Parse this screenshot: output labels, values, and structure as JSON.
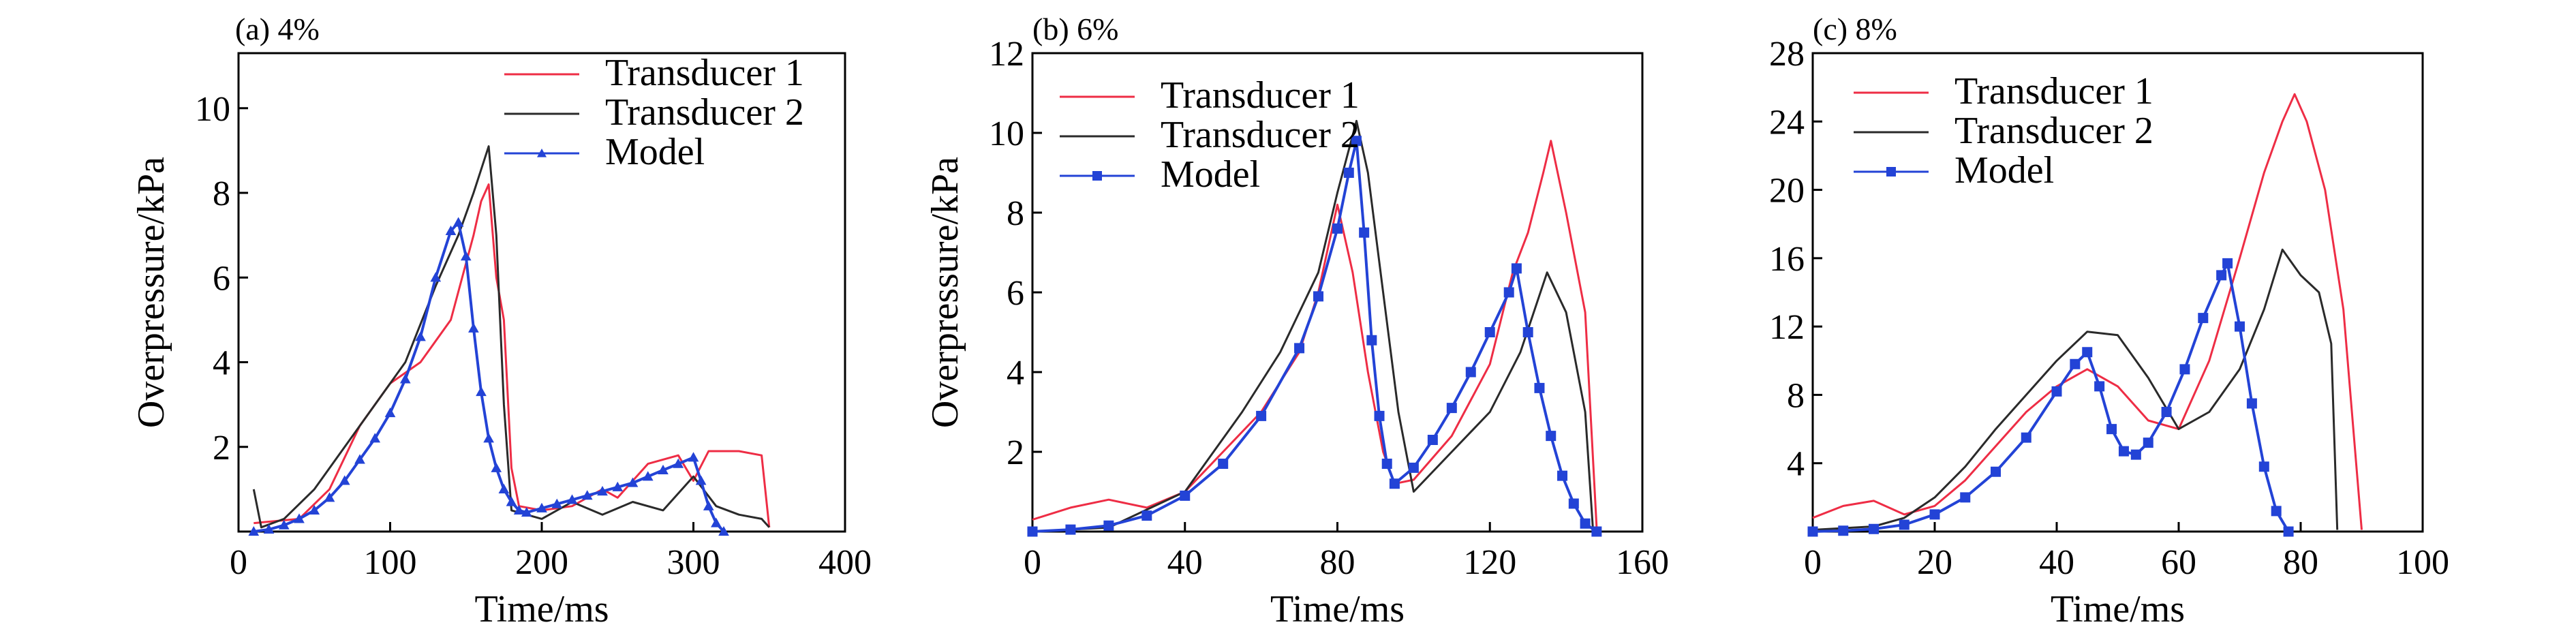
{
  "colors": {
    "transducer1": "#ee2d45",
    "transducer2": "#2a2a2a",
    "model": "#2343d6",
    "axis": "#000000"
  },
  "chart_data": [
    {
      "type": "line",
      "panel_label": "(a) 4%",
      "xlabel": "Time/ms",
      "ylabel": "Overpressure/kPa",
      "xlim": [
        0,
        400
      ],
      "ylim": [
        0,
        11.3
      ],
      "xticks": [
        0,
        100,
        200,
        300,
        400
      ],
      "yticks": [
        2,
        4,
        6,
        8,
        10
      ],
      "legend": "top-right",
      "series": [
        {
          "name": "Transducer 1",
          "color_key": "transducer1",
          "marker": "none",
          "x": [
            10,
            40,
            60,
            80,
            100,
            120,
            140,
            155,
            160,
            165,
            170,
            175,
            180,
            185,
            200,
            220,
            240,
            250,
            270,
            290,
            300,
            310,
            330,
            345,
            350
          ],
          "y": [
            0.2,
            0.3,
            1.0,
            2.5,
            3.5,
            4.0,
            5.0,
            7.0,
            7.8,
            8.2,
            6.0,
            5.0,
            1.5,
            0.6,
            0.5,
            0.6,
            1.0,
            0.8,
            1.6,
            1.8,
            1.2,
            1.9,
            1.9,
            1.8,
            0.1
          ]
        },
        {
          "name": "Transducer 2",
          "color_key": "transducer2",
          "marker": "none",
          "x": [
            10,
            15,
            30,
            50,
            70,
            90,
            110,
            130,
            145,
            155,
            165,
            170,
            175,
            180,
            200,
            220,
            240,
            260,
            280,
            300,
            315,
            330,
            345,
            350
          ],
          "y": [
            1.0,
            0.1,
            0.3,
            1.0,
            2.0,
            3.0,
            4.0,
            5.8,
            7.0,
            8.0,
            9.1,
            7.0,
            3.0,
            0.5,
            0.3,
            0.7,
            0.4,
            0.7,
            0.5,
            1.3,
            0.6,
            0.4,
            0.3,
            0.1
          ]
        },
        {
          "name": "Model",
          "color_key": "model",
          "marker": "triangle",
          "x": [
            10,
            20,
            30,
            40,
            50,
            60,
            70,
            80,
            90,
            100,
            110,
            120,
            130,
            140,
            145,
            150,
            155,
            160,
            165,
            170,
            175,
            180,
            185,
            190,
            200,
            210,
            220,
            230,
            240,
            250,
            260,
            270,
            280,
            290,
            300,
            305,
            310,
            315,
            320
          ],
          "y": [
            0.0,
            0.05,
            0.15,
            0.3,
            0.5,
            0.8,
            1.2,
            1.7,
            2.2,
            2.8,
            3.6,
            4.6,
            6.0,
            7.1,
            7.3,
            6.5,
            4.8,
            3.3,
            2.2,
            1.5,
            1.0,
            0.7,
            0.5,
            0.45,
            0.55,
            0.65,
            0.75,
            0.85,
            0.95,
            1.05,
            1.15,
            1.3,
            1.45,
            1.6,
            1.75,
            1.2,
            0.6,
            0.2,
            0.0
          ]
        }
      ]
    },
    {
      "type": "line",
      "panel_label": "(b) 6%",
      "xlabel": "Time/ms",
      "ylabel": "Overpressure/kPa",
      "xlim": [
        0,
        160
      ],
      "ylim": [
        0,
        12
      ],
      "xticks": [
        0,
        40,
        80,
        120,
        160
      ],
      "yticks": [
        2,
        4,
        6,
        8,
        10,
        12
      ],
      "legend": "top-right",
      "series": [
        {
          "name": "Transducer 1",
          "color_key": "transducer1",
          "marker": "none",
          "x": [
            0,
            10,
            20,
            30,
            40,
            50,
            60,
            70,
            75,
            80,
            84,
            88,
            92,
            95,
            100,
            110,
            120,
            126,
            130,
            134,
            136,
            140,
            145,
            148
          ],
          "y": [
            0.3,
            0.6,
            0.8,
            0.6,
            1.0,
            2.0,
            3.0,
            4.5,
            6.0,
            8.2,
            6.5,
            4.0,
            2.0,
            1.2,
            1.3,
            2.4,
            4.2,
            6.5,
            7.5,
            9.0,
            9.8,
            8.0,
            5.5,
            0.1
          ]
        },
        {
          "name": "Transducer 2",
          "color_key": "transducer2",
          "marker": "none",
          "x": [
            0,
            20,
            40,
            55,
            65,
            75,
            80,
            85,
            88,
            92,
            96,
            100,
            110,
            120,
            128,
            135,
            140,
            145,
            147
          ],
          "y": [
            0.0,
            0.1,
            1.0,
            3.0,
            4.5,
            6.5,
            8.5,
            10.3,
            9.0,
            6.0,
            3.0,
            1.0,
            2.0,
            3.0,
            4.5,
            6.5,
            5.5,
            3.0,
            0.1
          ]
        },
        {
          "name": "Model",
          "color_key": "model",
          "marker": "square",
          "x": [
            0,
            10,
            20,
            30,
            40,
            50,
            60,
            70,
            75,
            80,
            83,
            85,
            87,
            89,
            91,
            93,
            95,
            100,
            105,
            110,
            115,
            120,
            125,
            127,
            130,
            133,
            136,
            139,
            142,
            145,
            148
          ],
          "y": [
            0.0,
            0.05,
            0.15,
            0.4,
            0.9,
            1.7,
            2.9,
            4.6,
            5.9,
            7.6,
            9.0,
            9.8,
            7.5,
            4.8,
            2.9,
            1.7,
            1.2,
            1.6,
            2.3,
            3.1,
            4.0,
            5.0,
            6.0,
            6.6,
            5.0,
            3.6,
            2.4,
            1.4,
            0.7,
            0.2,
            0.0
          ]
        }
      ]
    },
    {
      "type": "line",
      "panel_label": "(c) 8%",
      "xlabel": "Time/ms",
      "ylabel": "",
      "xlim": [
        0,
        100
      ],
      "ylim": [
        0,
        28
      ],
      "xticks": [
        0,
        20,
        40,
        60,
        80,
        100
      ],
      "yticks": [
        4,
        8,
        12,
        16,
        20,
        24,
        28
      ],
      "legend": "top-left",
      "series": [
        {
          "name": "Transducer 1",
          "color_key": "transducer1",
          "marker": "none",
          "x": [
            0,
            5,
            10,
            15,
            20,
            25,
            30,
            35,
            40,
            45,
            50,
            55,
            60,
            65,
            70,
            74,
            77,
            79,
            81,
            84,
            87,
            90
          ],
          "y": [
            0.8,
            1.5,
            1.8,
            1.0,
            1.5,
            3.0,
            5.0,
            7.0,
            8.5,
            9.5,
            8.5,
            6.5,
            6.0,
            10.0,
            16.0,
            21.0,
            24.0,
            25.6,
            24.0,
            20.0,
            13.0,
            0.1
          ]
        },
        {
          "name": "Transducer 2",
          "color_key": "transducer2",
          "marker": "none",
          "x": [
            0,
            10,
            15,
            20,
            25,
            30,
            35,
            40,
            45,
            50,
            55,
            60,
            65,
            70,
            74,
            77,
            80,
            83,
            85,
            86
          ],
          "y": [
            0.1,
            0.3,
            0.8,
            2.0,
            3.8,
            6.0,
            8.0,
            10.0,
            11.7,
            11.5,
            9.0,
            6.0,
            7.0,
            9.5,
            13.0,
            16.5,
            15.0,
            14.0,
            11.0,
            0.1
          ]
        },
        {
          "name": "Model",
          "color_key": "model",
          "marker": "square",
          "x": [
            0,
            5,
            10,
            15,
            20,
            25,
            30,
            35,
            40,
            43,
            45,
            47,
            49,
            51,
            53,
            55,
            58,
            61,
            64,
            67,
            68,
            70,
            72,
            74,
            76,
            78
          ],
          "y": [
            0.0,
            0.05,
            0.15,
            0.4,
            1.0,
            2.0,
            3.5,
            5.5,
            8.2,
            9.8,
            10.5,
            8.5,
            6.0,
            4.7,
            4.5,
            5.2,
            7.0,
            9.5,
            12.5,
            15.0,
            15.7,
            12.0,
            7.5,
            3.8,
            1.2,
            0.0
          ]
        }
      ]
    }
  ]
}
